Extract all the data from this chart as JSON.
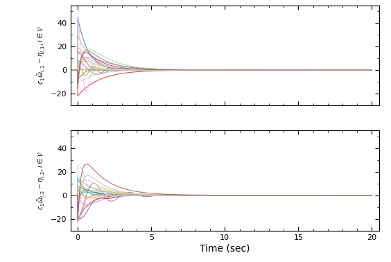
{
  "xlabel": "Time (sec)",
  "ylabel1": "$c_1 \\tilde{\\omega}_{i,1} - \\eta_{i,1}, i \\in \\mathcal{V}$",
  "ylabel2": "$c_1 \\tilde{\\omega}_{i,2} - \\eta_{i,2}, i \\in \\mathcal{V}$",
  "xlim": [
    -0.5,
    20.5
  ],
  "ylim": [
    -30,
    55
  ],
  "xticks": [
    0,
    5,
    10,
    15,
    20
  ],
  "yticks": [
    -20,
    0,
    20,
    40
  ],
  "t_end": 20,
  "dt": 0.005,
  "n_robots": 20,
  "colors": [
    "#d62728",
    "#ff7f0e",
    "#bcbd22",
    "#2ca02c",
    "#17becf",
    "#1f77b4",
    "#9467bd",
    "#e377c2",
    "#8c564b",
    "#7f7f7f",
    "#aec7e8",
    "#ffbb78",
    "#98df8a",
    "#ff9896",
    "#c5b0d5",
    "#c49c94",
    "#f7b6d2",
    "#dbdb8d",
    "#9edae5",
    "#ad494a"
  ],
  "background_color": "#ffffff",
  "seed": 7
}
